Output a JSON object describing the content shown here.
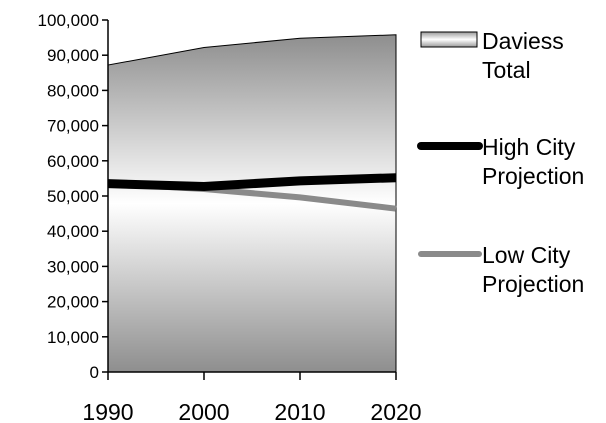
{
  "chart_data": {
    "type": "area",
    "x": [
      1990,
      2000,
      2010,
      2020
    ],
    "x_tick_labels": [
      "1990",
      "2000",
      "2010",
      "2020"
    ],
    "ylim": [
      0,
      100000
    ],
    "y_ticks": [
      0,
      10000,
      20000,
      30000,
      40000,
      50000,
      60000,
      70000,
      80000,
      90000,
      100000
    ],
    "y_tick_labels": [
      "0",
      "10,000",
      "20,000",
      "30,000",
      "40,000",
      "50,000",
      "60,000",
      "70,000",
      "80,000",
      "90,000",
      "100,000"
    ],
    "grid": false,
    "legend_position": "right",
    "series": [
      {
        "key": "daviess",
        "name_lines": [
          "Daviess",
          "Total"
        ],
        "kind": "area",
        "values": [
          87200,
          92200,
          94800,
          95800
        ],
        "color": "#9a9a9a"
      },
      {
        "key": "high",
        "name_lines": [
          "High City",
          "Projection"
        ],
        "kind": "line",
        "values": [
          53500,
          52700,
          54300,
          55200
        ],
        "color": "#000000"
      },
      {
        "key": "low",
        "name_lines": [
          "Low City",
          "Projection"
        ],
        "kind": "line",
        "values": [
          53500,
          52000,
          49600,
          46400
        ],
        "color": "#8a8a8a"
      }
    ]
  }
}
